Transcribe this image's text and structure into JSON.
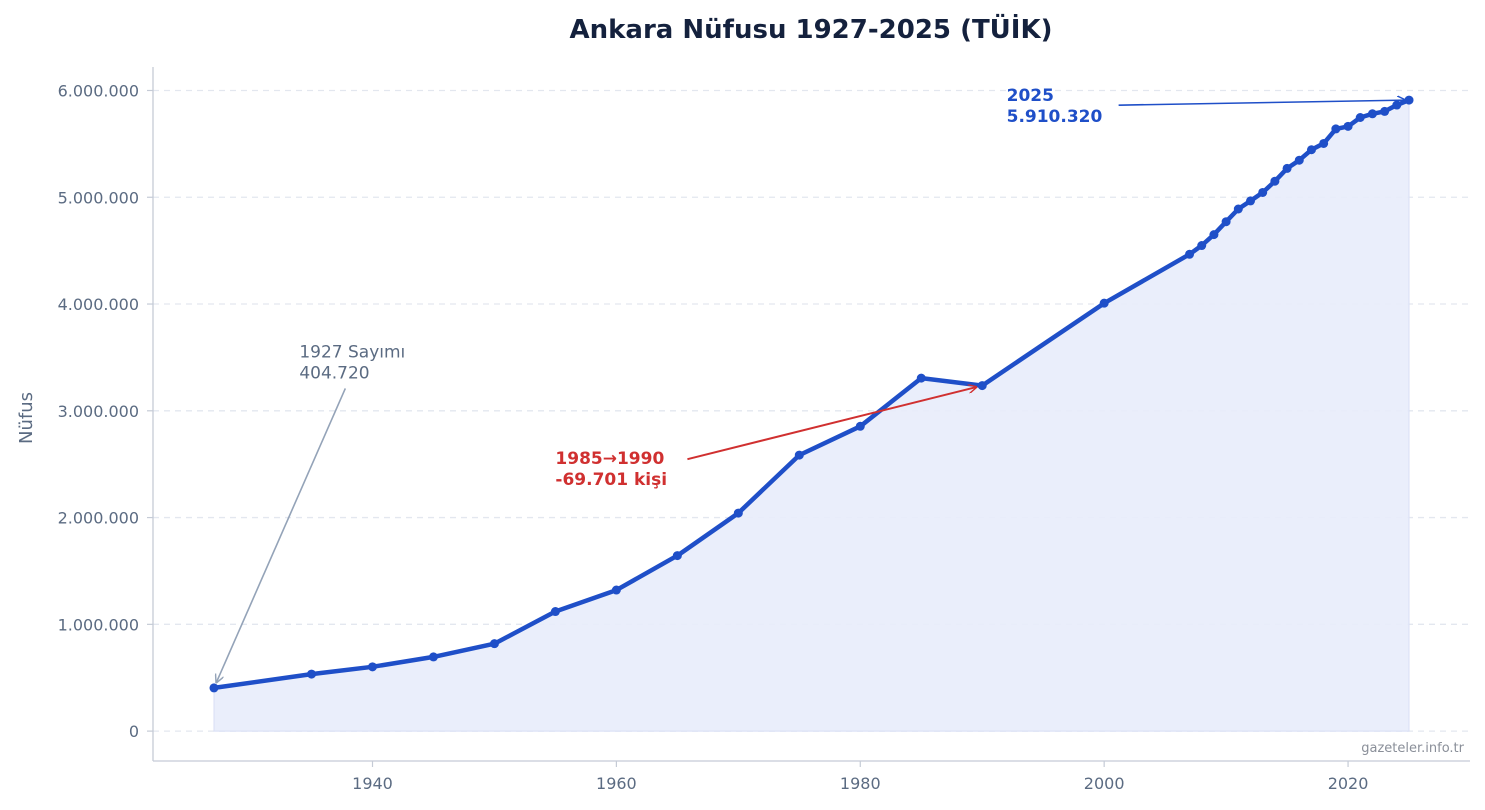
{
  "chart_data": {
    "type": "line",
    "title": "Ankara Nüfusu 1927-2025 (TÜİK)",
    "xlabel": "",
    "ylabel": "Nüfus",
    "xlim": [
      1922,
      2030
    ],
    "ylim": [
      -280000,
      6220000
    ],
    "x_ticks": [
      1940,
      1960,
      1980,
      2000,
      2020
    ],
    "y_ticks": [
      0,
      1000000,
      2000000,
      3000000,
      4000000,
      5000000,
      6000000
    ],
    "y_tick_labels": [
      "0",
      "1.000.000",
      "2.000.000",
      "3.000.000",
      "4.000.000",
      "5.000.000",
      "6.000.000"
    ],
    "grid": "horizontal-dashed",
    "colors": {
      "line": "#1f4fc8",
      "fill": "#e8ecfb",
      "grid": "#e3e7ef",
      "axis": "#c5cbd6",
      "annotation_gray": "#94a3b8",
      "annotation_red": "#d03030",
      "annotation_blue": "#1f4fc8"
    },
    "series": [
      {
        "x": [
          1927,
          1935,
          1940,
          1945,
          1950,
          1955,
          1960,
          1965,
          1970,
          1975,
          1980,
          1985,
          1990,
          2000,
          2007,
          2008,
          2009,
          2010,
          2011,
          2012,
          2013,
          2014,
          2015,
          2016,
          2017,
          2018,
          2019,
          2020,
          2021,
          2022,
          2023,
          2024,
          2025
        ],
        "values": [
          404720,
          534000,
          602000,
          695000,
          819000,
          1120000,
          1321000,
          1644000,
          2042000,
          2585000,
          2855000,
          3306000,
          3236000,
          4008000,
          4466000,
          4548000,
          4650000,
          4771000,
          4890000,
          4966000,
          5045000,
          5150000,
          5270000,
          5347000,
          5445000,
          5504000,
          5640000,
          5664000,
          5747000,
          5782000,
          5804000,
          5864000,
          5910320
        ]
      }
    ],
    "annotations": [
      {
        "id": "first",
        "lines": [
          "1927 Sayımı",
          "404.720"
        ],
        "point_x": 1927,
        "point_y": 404720,
        "text_x": 1934,
        "text_y": 3500000
      },
      {
        "id": "drop",
        "lines": [
          "1985→1990",
          "-69.701 kişi"
        ],
        "point_x": 1990,
        "point_y": 3236000,
        "text_x": 1955,
        "text_y": 2500000
      },
      {
        "id": "last",
        "lines": [
          "2025",
          "5.910.320"
        ],
        "point_x": 2025,
        "point_y": 5910320,
        "text_x": 1992,
        "text_y": 5900000
      }
    ],
    "watermark": "gazeteler.info.tr"
  }
}
